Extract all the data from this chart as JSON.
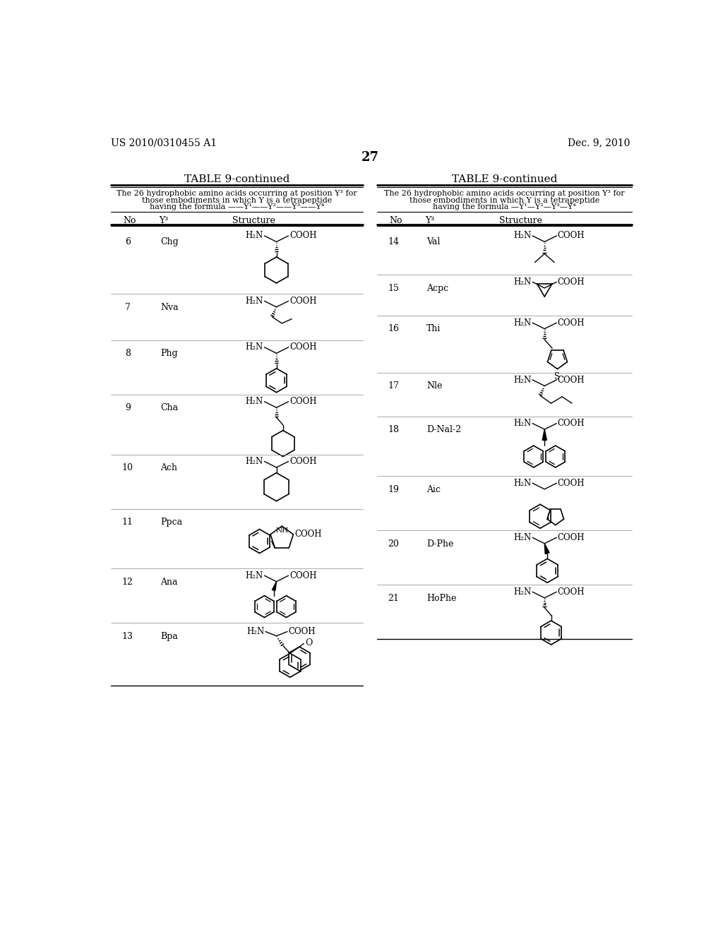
{
  "page_number": "27",
  "patent_number": "US 2010/0310455 A1",
  "patent_date": "Dec. 9, 2010",
  "table_title": "TABLE 9-continued",
  "table_subtitle_line1": "The 26 hydrophobic amino acids occurring at position Y³ for",
  "table_subtitle_line2": "those embodiments in which Y is a tetrapeptide",
  "table_subtitle_line3_left": "having the formula ——Y¹——Y²——Y³——Y⁴",
  "table_subtitle_line3_right": "having the formula —Y¹—Y²—Y³—Y⁴",
  "col_headers": [
    "No",
    "Y³",
    "Structure"
  ],
  "left_entries": [
    {
      "no": "6",
      "name": "Chg"
    },
    {
      "no": "7",
      "name": "Nva"
    },
    {
      "no": "8",
      "name": "Phg"
    },
    {
      "no": "9",
      "name": "Cha"
    },
    {
      "no": "10",
      "name": "Ach"
    },
    {
      "no": "11",
      "name": "Ppca"
    },
    {
      "no": "12",
      "name": "Ana"
    },
    {
      "no": "13",
      "name": "Bpa"
    }
  ],
  "right_entries": [
    {
      "no": "14",
      "name": "Val"
    },
    {
      "no": "15",
      "name": "Acpc"
    },
    {
      "no": "16",
      "name": "Thi"
    },
    {
      "no": "17",
      "name": "Nle"
    },
    {
      "no": "18",
      "name": "D-Nal-2"
    },
    {
      "no": "19",
      "name": "Aic"
    },
    {
      "no": "20",
      "name": "D-Phe"
    },
    {
      "no": "21",
      "name": "HoPhe"
    }
  ],
  "background_color": "#ffffff"
}
